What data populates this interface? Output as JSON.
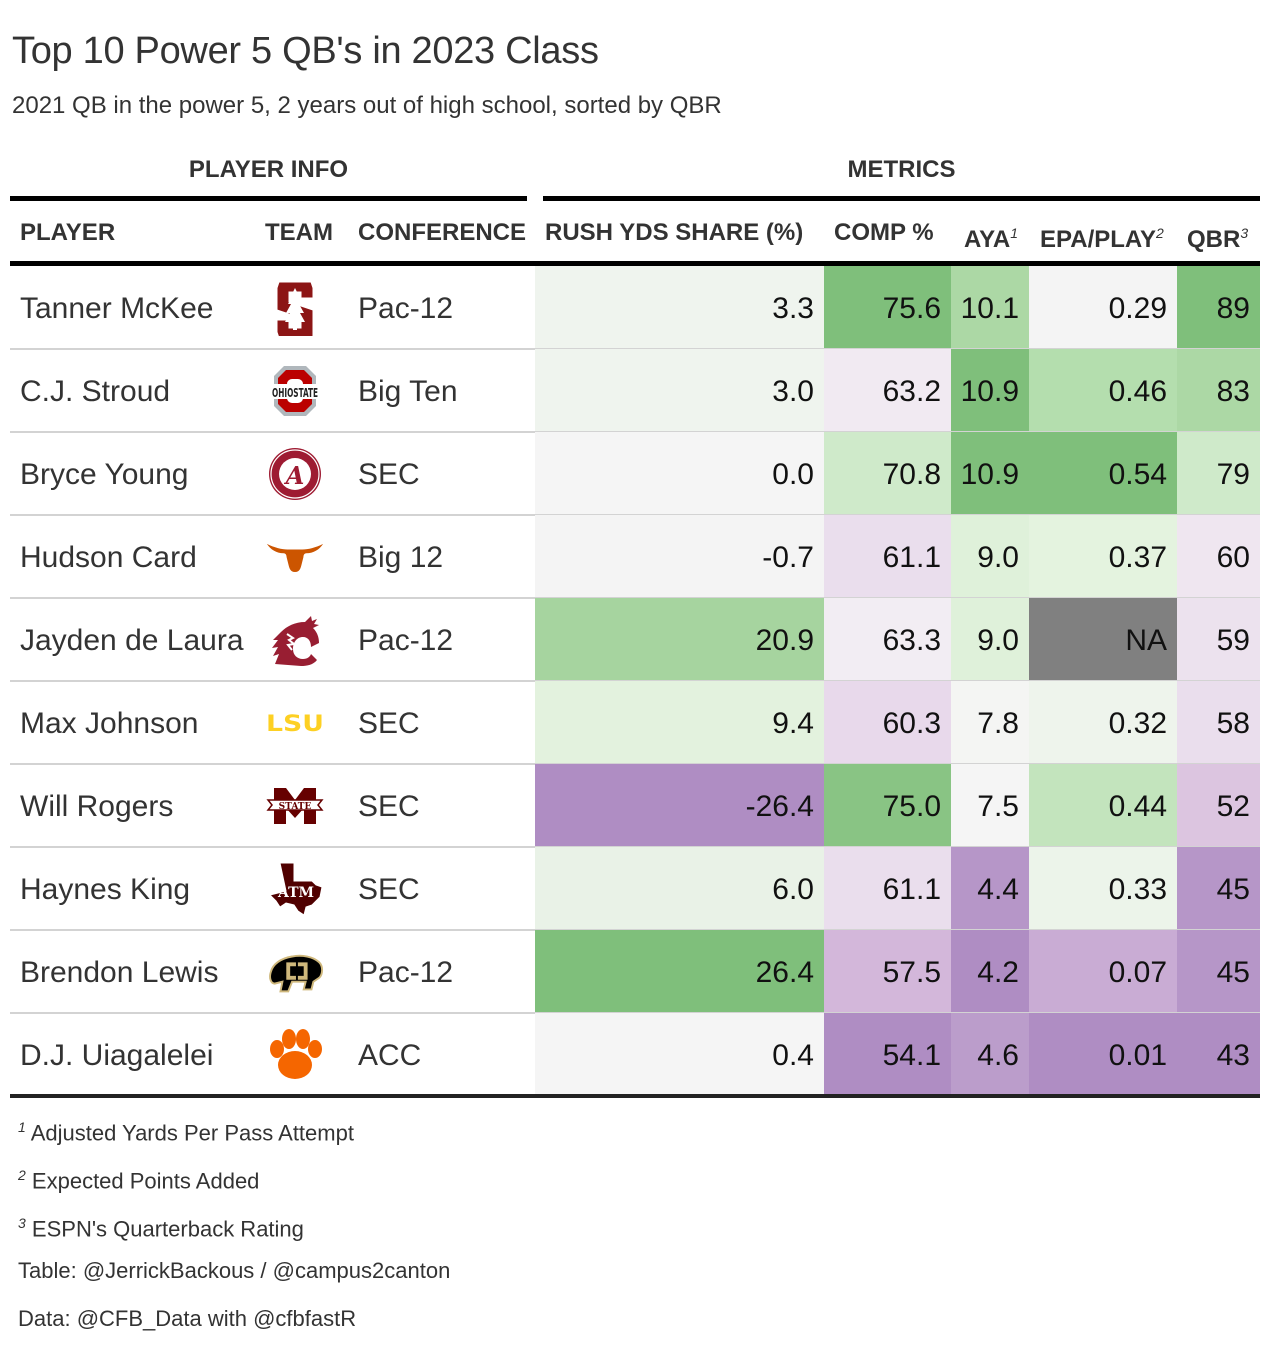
{
  "title": "Top 10 Power 5 QB's in 2023 Class",
  "subtitle": "2021 QB in the power 5, 2 years out of high school, sorted by QBR",
  "spanners": {
    "player_info": "PLAYER INFO",
    "metrics": "METRICS"
  },
  "columns": {
    "player": "PLAYER",
    "team": "TEAM",
    "conference": "CONFERENCE",
    "rush_share": "RUSH YDS SHARE (%)",
    "comp": "COMP %",
    "aya": "AYA",
    "aya_note": "1",
    "epa": "EPA/PLAY",
    "epa_note": "2",
    "qbr": "QBR",
    "qbr_note": "3"
  },
  "palette": {
    "green_dark": "#7fbf7b",
    "green_mid": "#a6d49f",
    "green_light": "#d9f0d3",
    "neutral": "#f7f7f7",
    "purple_light": "#e7d4e8",
    "purple_mid": "#c2a5cf",
    "purple_dark": "#af8dc3",
    "na": "#808080"
  },
  "chart_data": {
    "type": "table",
    "title": "Top 10 Power 5 QB's in 2023 Class",
    "subtitle": "2021 QB in the power 5, 2 years out of high school, sorted by QBR",
    "color_scale": "diverging purple-green (low = purple, high = green), per column",
    "rows": [
      {
        "player": "Tanner McKee",
        "team": "Stanford",
        "team_logo": "stanford-logo",
        "conference": "Pac-12",
        "rush_share": "3.3",
        "comp": "75.6",
        "aya": "10.1",
        "epa": "0.29",
        "qbr": "89",
        "colors": {
          "rush_share": "#eff4ee",
          "comp": "#7fbf7b",
          "aya": "#acd8a5",
          "epa": "#f4f4f4",
          "qbr": "#7fbf7b"
        }
      },
      {
        "player": "C.J. Stroud",
        "team": "Ohio State",
        "team_logo": "ohio-state-logo",
        "conference": "Big Ten",
        "rush_share": "3.0",
        "comp": "63.2",
        "aya": "10.9",
        "epa": "0.46",
        "qbr": "83",
        "colors": {
          "rush_share": "#eff4ee",
          "comp": "#f1eaf2",
          "aya": "#7fbf7b",
          "epa": "#b4deae",
          "qbr": "#acd8a5"
        }
      },
      {
        "player": "Bryce Young",
        "team": "Alabama",
        "team_logo": "alabama-logo",
        "conference": "SEC",
        "rush_share": "0.0",
        "comp": "70.8",
        "aya": "10.9",
        "epa": "0.54",
        "qbr": "79",
        "colors": {
          "rush_share": "#f5f5f5",
          "comp": "#cfeaca",
          "aya": "#7fbf7b",
          "epa": "#7fbf7b",
          "qbr": "#cfeaca"
        }
      },
      {
        "player": "Hudson Card",
        "team": "Texas",
        "team_logo": "texas-logo",
        "conference": "Big 12",
        "rush_share": "-0.7",
        "comp": "61.1",
        "aya": "9.0",
        "epa": "0.37",
        "qbr": "60",
        "colors": {
          "rush_share": "#f4f4f4",
          "comp": "#eadeed",
          "aya": "#dff1da",
          "epa": "#e4f3df",
          "qbr": "#efe6f0"
        }
      },
      {
        "player": "Jayden de Laura",
        "team": "Washington State",
        "team_logo": "washington-state-logo",
        "conference": "Pac-12",
        "rush_share": "20.9",
        "comp": "63.3",
        "aya": "9.0",
        "epa": "NA",
        "qbr": "59",
        "colors": {
          "rush_share": "#a6d49f",
          "comp": "#f2edf3",
          "aya": "#dff1da",
          "epa": "#808080",
          "qbr": "#ece2ee"
        }
      },
      {
        "player": "Max Johnson",
        "team": "LSU",
        "team_logo": "lsu-logo",
        "conference": "SEC",
        "rush_share": "9.4",
        "comp": "60.3",
        "aya": "7.8",
        "epa": "0.32",
        "qbr": "58",
        "colors": {
          "rush_share": "#e3f2de",
          "comp": "#e8d9eb",
          "aya": "#f4f5f3",
          "epa": "#eef4ec",
          "qbr": "#eadeed"
        }
      },
      {
        "player": "Will Rogers",
        "team": "Mississippi State",
        "team_logo": "mississippi-state-logo",
        "conference": "SEC",
        "rush_share": "-26.4",
        "comp": "75.0",
        "aya": "7.5",
        "epa": "0.44",
        "qbr": "52",
        "colors": {
          "rush_share": "#af8dc3",
          "comp": "#89c484",
          "aya": "#f5f5f5",
          "epa": "#c3e4bd",
          "qbr": "#dcc5e0"
        }
      },
      {
        "player": "Haynes King",
        "team": "Texas A&M",
        "team_logo": "texas-am-logo",
        "conference": "SEC",
        "rush_share": "6.0",
        "comp": "61.1",
        "aya": "4.4",
        "epa": "0.33",
        "qbr": "45",
        "colors": {
          "rush_share": "#e9f2e7",
          "comp": "#eadeed",
          "aya": "#b696c8",
          "epa": "#ecf4ea",
          "qbr": "#b696c8"
        }
      },
      {
        "player": "Brendon Lewis",
        "team": "Colorado",
        "team_logo": "colorado-logo",
        "conference": "Pac-12",
        "rush_share": "26.4",
        "comp": "57.5",
        "aya": "4.2",
        "epa": "0.07",
        "qbr": "45",
        "colors": {
          "rush_share": "#7fbf7b",
          "comp": "#d3b7da",
          "aya": "#af8dc3",
          "epa": "#c9acd4",
          "qbr": "#b696c8"
        }
      },
      {
        "player": "D.J. Uiagalelei",
        "team": "Clemson",
        "team_logo": "clemson-logo",
        "conference": "ACC",
        "rush_share": "0.4",
        "comp": "54.1",
        "aya": "4.6",
        "epa": "0.01",
        "qbr": "43",
        "colors": {
          "rush_share": "#f5f5f5",
          "comp": "#af8dc3",
          "aya": "#bb9dcb",
          "epa": "#af8dc3",
          "qbr": "#af8dc3"
        }
      }
    ]
  },
  "footnotes": [
    {
      "mark": "1",
      "text": "Adjusted Yards Per Pass Attempt"
    },
    {
      "mark": "2",
      "text": "Expected Points Added"
    },
    {
      "mark": "3",
      "text": "ESPN's Quarterback Rating"
    }
  ],
  "source_notes": {
    "table": "Table: @JerrickBackous / @campus2canton",
    "data": "Data: @CFB_Data with @cfbfastR"
  }
}
